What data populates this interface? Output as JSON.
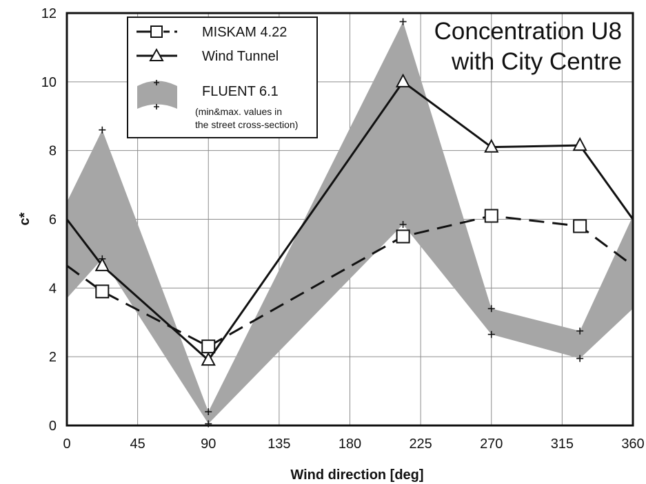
{
  "chart_data": {
    "type": "line",
    "title_lines": [
      "Concentration U8",
      "with City Centre"
    ],
    "xlabel": "Wind direction [deg]",
    "ylabel": "c*",
    "xlim": [
      0,
      360
    ],
    "ylim": [
      0,
      12
    ],
    "xticks": [
      0,
      45,
      90,
      135,
      180,
      225,
      270,
      315,
      360
    ],
    "yticks": [
      0,
      2,
      4,
      6,
      8,
      10,
      12
    ],
    "grid": true,
    "legend_position": "top-left",
    "series": [
      {
        "name": "MISKAM 4.22",
        "style": "dashed",
        "marker": "square",
        "points": [
          [
            0,
            4.65
          ],
          [
            22.5,
            3.9
          ],
          [
            90,
            2.3
          ],
          [
            213.8,
            5.5
          ],
          [
            270,
            6.1
          ],
          [
            326.3,
            5.8
          ],
          [
            360,
            4.65
          ]
        ]
      },
      {
        "name": "Wind Tunnel",
        "style": "solid",
        "marker": "triangle",
        "points": [
          [
            0,
            6.0
          ],
          [
            22.5,
            4.65
          ],
          [
            90,
            1.9
          ],
          [
            213.8,
            10.0
          ],
          [
            270,
            8.1
          ],
          [
            326.3,
            8.15
          ],
          [
            360,
            6.0
          ]
        ]
      }
    ],
    "band": {
      "name": "FLUENT 6.1",
      "note_lines": [
        "(min&max. values in",
        "the street cross-section)"
      ],
      "color": "#a6a6a6",
      "x": [
        0,
        22.5,
        90,
        213.8,
        270,
        326.3,
        360
      ],
      "min": [
        3.7,
        4.85,
        0.05,
        5.85,
        2.65,
        1.95,
        3.4
      ],
      "max": [
        6.5,
        8.6,
        0.4,
        11.75,
        3.4,
        2.75,
        6.1
      ]
    }
  }
}
